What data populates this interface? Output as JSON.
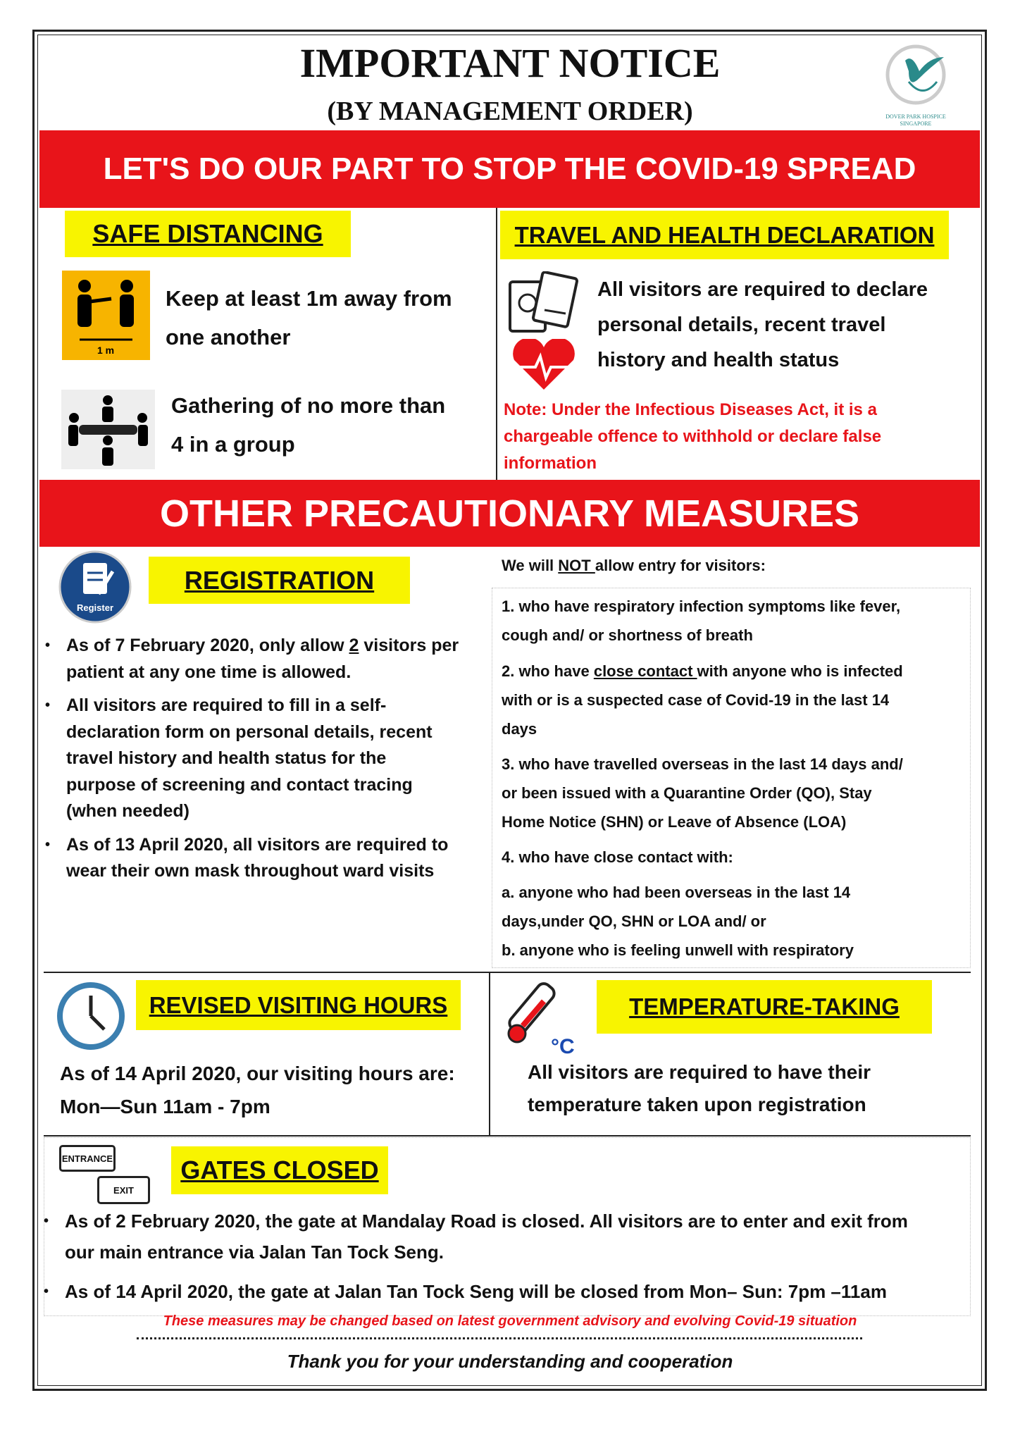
{
  "header": {
    "title": "IMPORTANT NOTICE",
    "subtitle": "(BY MANAGEMENT ORDER)",
    "logo_text": "DOVER PARK HOSPICE SINGAPORE"
  },
  "banner1": "LET'S DO OUR PART TO STOP THE COVID-19 SPREAD",
  "safe": {
    "heading": "SAFE DISTANCING",
    "icon_label": "1 m",
    "line1": [
      "Keep at least 1m away from",
      "one another"
    ],
    "line2": [
      "Gathering of no more than",
      "4 in a group"
    ]
  },
  "travel": {
    "heading": "TRAVEL AND HEALTH DECLARATION",
    "lines": [
      "All visitors are required to declare",
      "personal details, recent travel",
      "history and health status"
    ],
    "note": [
      "Note: Under the Infectious Diseases Act, it is a",
      "chargeable offence to withhold or declare false",
      "information"
    ]
  },
  "banner2": "OTHER PRECAUTIONARY MEASURES",
  "registration": {
    "heading": "REGISTRATION",
    "icon_label": "Register",
    "b1": [
      "As of 7 February 2020, only allow ",
      "2",
      " visitors per",
      "patient at any one time is allowed."
    ],
    "b2": [
      "All visitors are required to fill in a self-",
      "declaration form on personal details, recent",
      "travel history and health status for the",
      "purpose of screening and contact tracing",
      "(when needed)"
    ],
    "b3": [
      "As of 13 April 2020, all visitors are required to",
      "wear their own mask throughout ward visits"
    ]
  },
  "entry": {
    "intro": [
      "We will ",
      "NOT ",
      "allow entry for visitors:"
    ],
    "lines": [
      "1. who have respiratory infection symptoms like fever,",
      "cough and/ or shortness of breath"
    ],
    "l2": [
      "2. who have ",
      "close contact ",
      "with anyone who is infected"
    ],
    "lines2": [
      "with or is a suspected case of Covid-19 in the last 14",
      "days",
      "3. who have travelled overseas in the last 14 days and/",
      "or been issued with a Quarantine Order (QO), Stay",
      "Home Notice (SHN) or Leave of Absence (LOA)",
      "4. who have close contact with:",
      "a. anyone who had been overseas in the last 14",
      "days,under QO, SHN or LOA and/ or",
      "b. anyone who is feeling unwell with respiratory"
    ]
  },
  "visiting": {
    "heading": "REVISED VISITING HOURS",
    "lines": [
      "As of 14 April 2020, our visiting hours are:",
      "Mon—Sun 11am - 7pm"
    ]
  },
  "temperature": {
    "heading": "TEMPERATURE-TAKING",
    "unit": "°C",
    "lines": [
      "All visitors are required to have their",
      "temperature taken upon registration"
    ]
  },
  "gates": {
    "heading": "GATES CLOSED",
    "entrance": "ENTRANCE",
    "exit": "EXIT",
    "b1": [
      "As of 2 February 2020, the gate at Mandalay Road is closed. All visitors are to enter and exit from",
      "our main entrance via Jalan Tan Tock Seng."
    ],
    "b2": "As of 14 April 2020, the gate at Jalan Tan Tock Seng will be closed from Mon– Sun: 7pm –11am"
  },
  "footer": {
    "disclaimer": "These measures may be changed based on latest government advisory and evolving Covid-19 situation",
    "thanks": "Thank you for your understanding and cooperation"
  },
  "colors": {
    "red": "#e8141a",
    "yellow": "#f8f400",
    "teal": "#2a8a8a",
    "navy": "#1a4a8a"
  }
}
